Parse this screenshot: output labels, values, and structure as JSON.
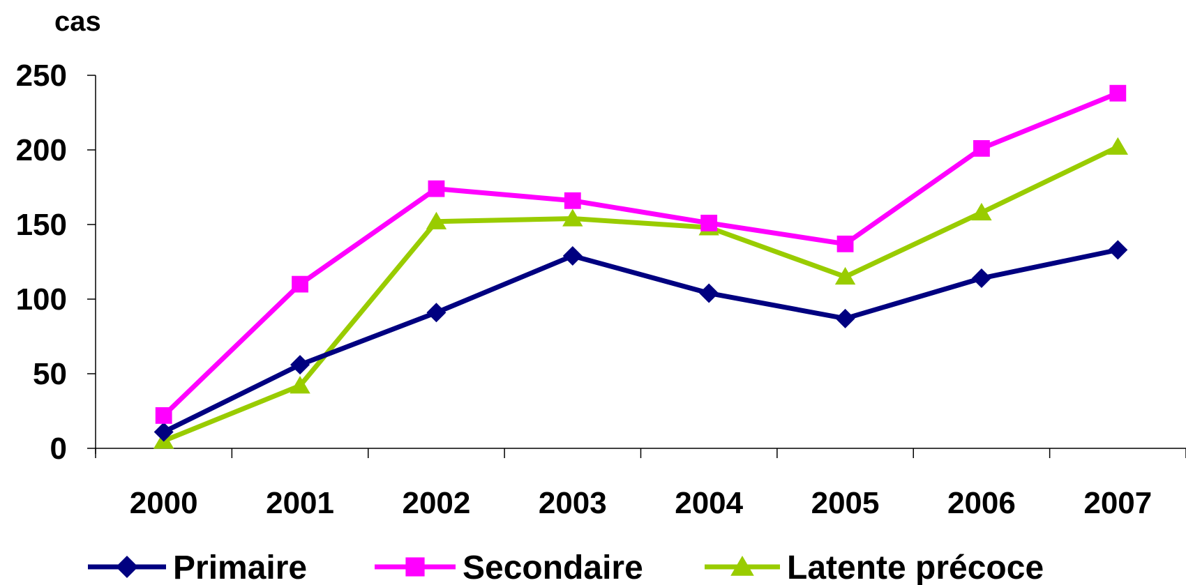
{
  "chart_data": {
    "type": "line",
    "title": "",
    "xlabel": "",
    "ylabel": "cas",
    "x": [
      "2000",
      "2001",
      "2002",
      "2003",
      "2004",
      "2005",
      "2006",
      "2007"
    ],
    "ylim": [
      0,
      250
    ],
    "yticks": [
      "0",
      "50",
      "100",
      "150",
      "200",
      "250"
    ],
    "grid": false,
    "legend": "bottom",
    "series": [
      {
        "name": "Primaire",
        "color": "#000080",
        "marker": "diamond",
        "values": [
          11,
          56,
          91,
          129,
          104,
          87,
          114,
          133
        ]
      },
      {
        "name": "Secondaire",
        "color": "#FF00FF",
        "marker": "square",
        "values": [
          22,
          110,
          174,
          166,
          151,
          137,
          201,
          238
        ]
      },
      {
        "name": "Latente précoce",
        "color": "#99CC00",
        "marker": "triangle",
        "values": [
          5,
          42,
          152,
          154,
          148,
          115,
          158,
          202
        ]
      }
    ]
  }
}
